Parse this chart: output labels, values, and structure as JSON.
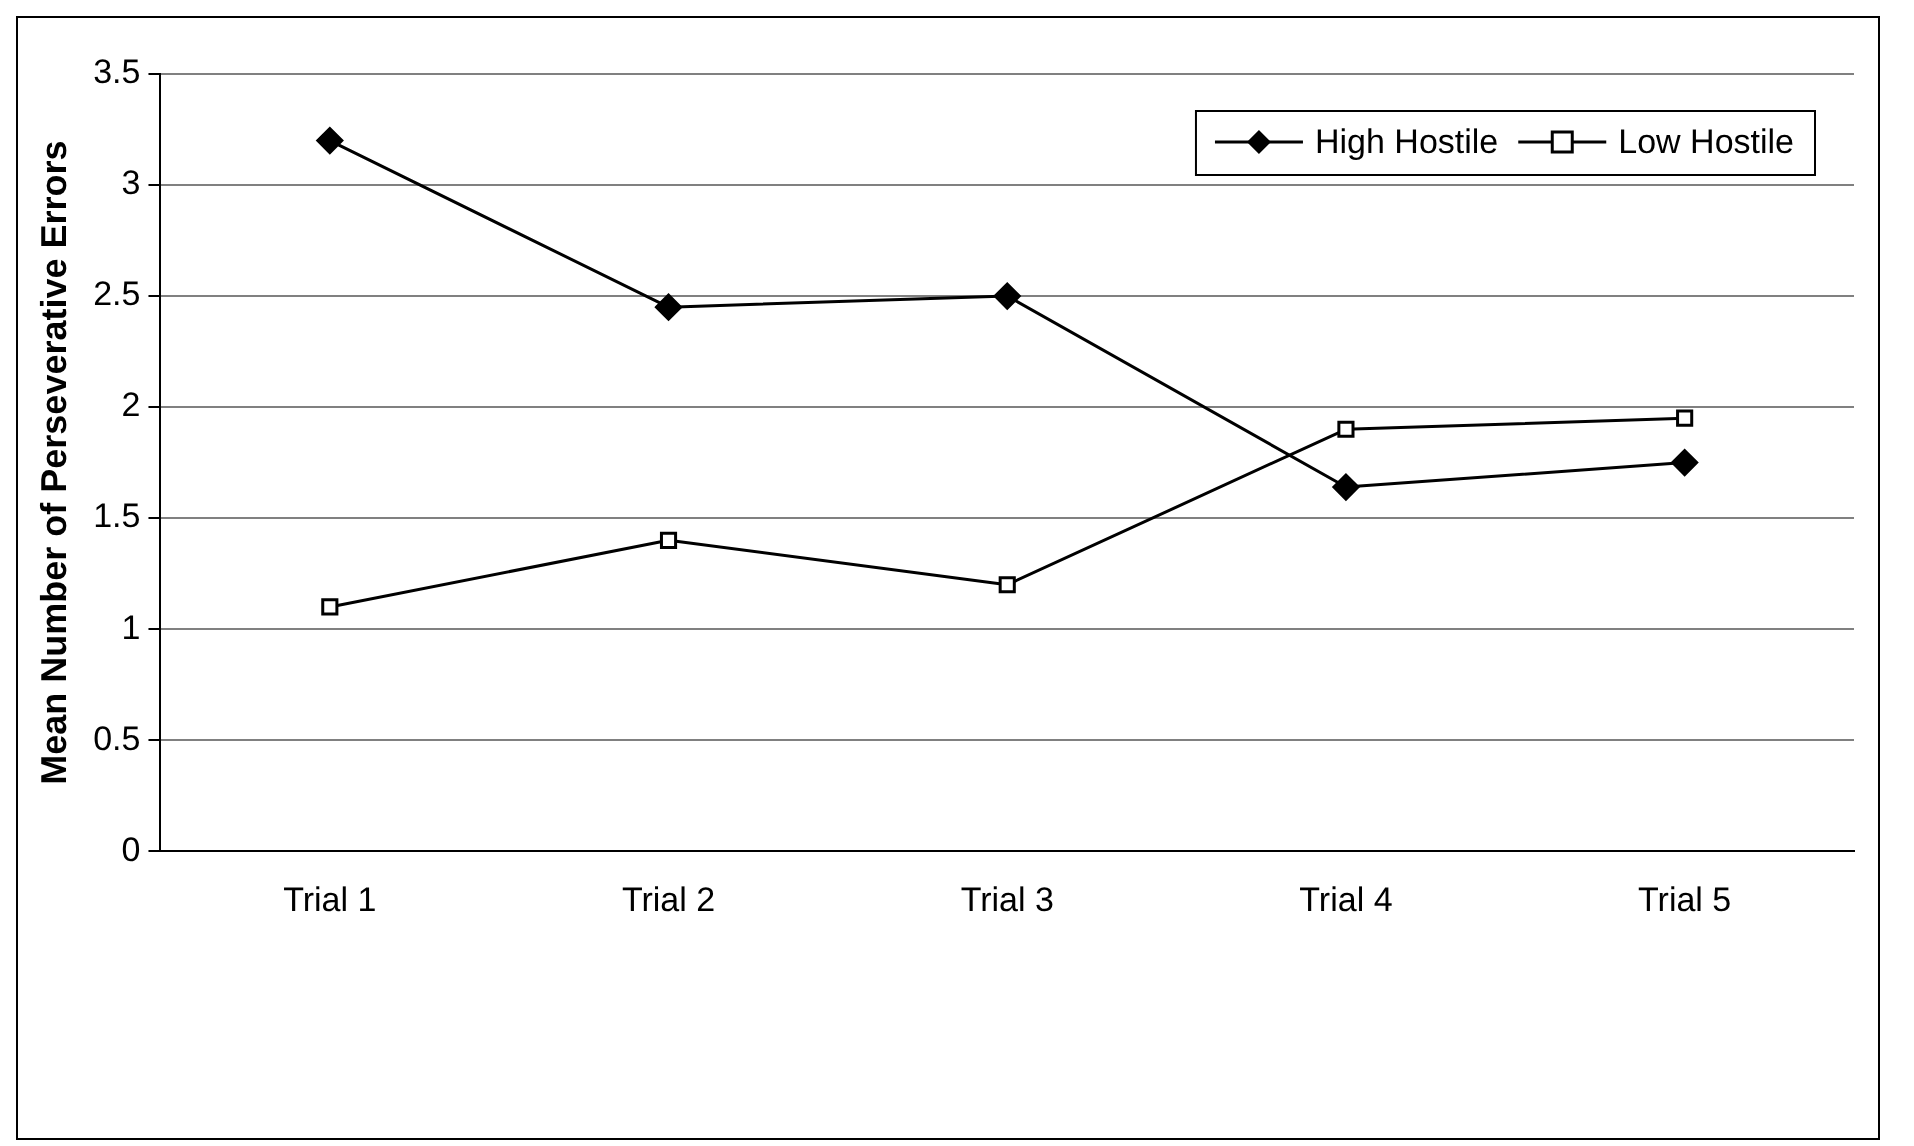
{
  "chart_data": {
    "type": "line",
    "ylabel": "Mean Number of Perseverative Errors",
    "categories": [
      "Trial 1",
      "Trial 2",
      "Trial 3",
      "Trial 4",
      "Trial 5"
    ],
    "series": [
      {
        "name": "High Hostile",
        "color": "#000000",
        "marker": "diamond",
        "values": [
          3.2,
          2.45,
          2.5,
          1.64,
          1.75
        ]
      },
      {
        "name": "Low Hostile",
        "color": "#000000",
        "marker": "square",
        "values": [
          1.1,
          1.4,
          1.2,
          1.9,
          1.95
        ]
      }
    ],
    "ylim": [
      0,
      3.5
    ],
    "yticks": [
      0,
      0.5,
      1,
      1.5,
      2,
      2.5,
      3,
      3.5
    ],
    "grid": "y",
    "legend": "top right",
    "line_style": "solid"
  }
}
